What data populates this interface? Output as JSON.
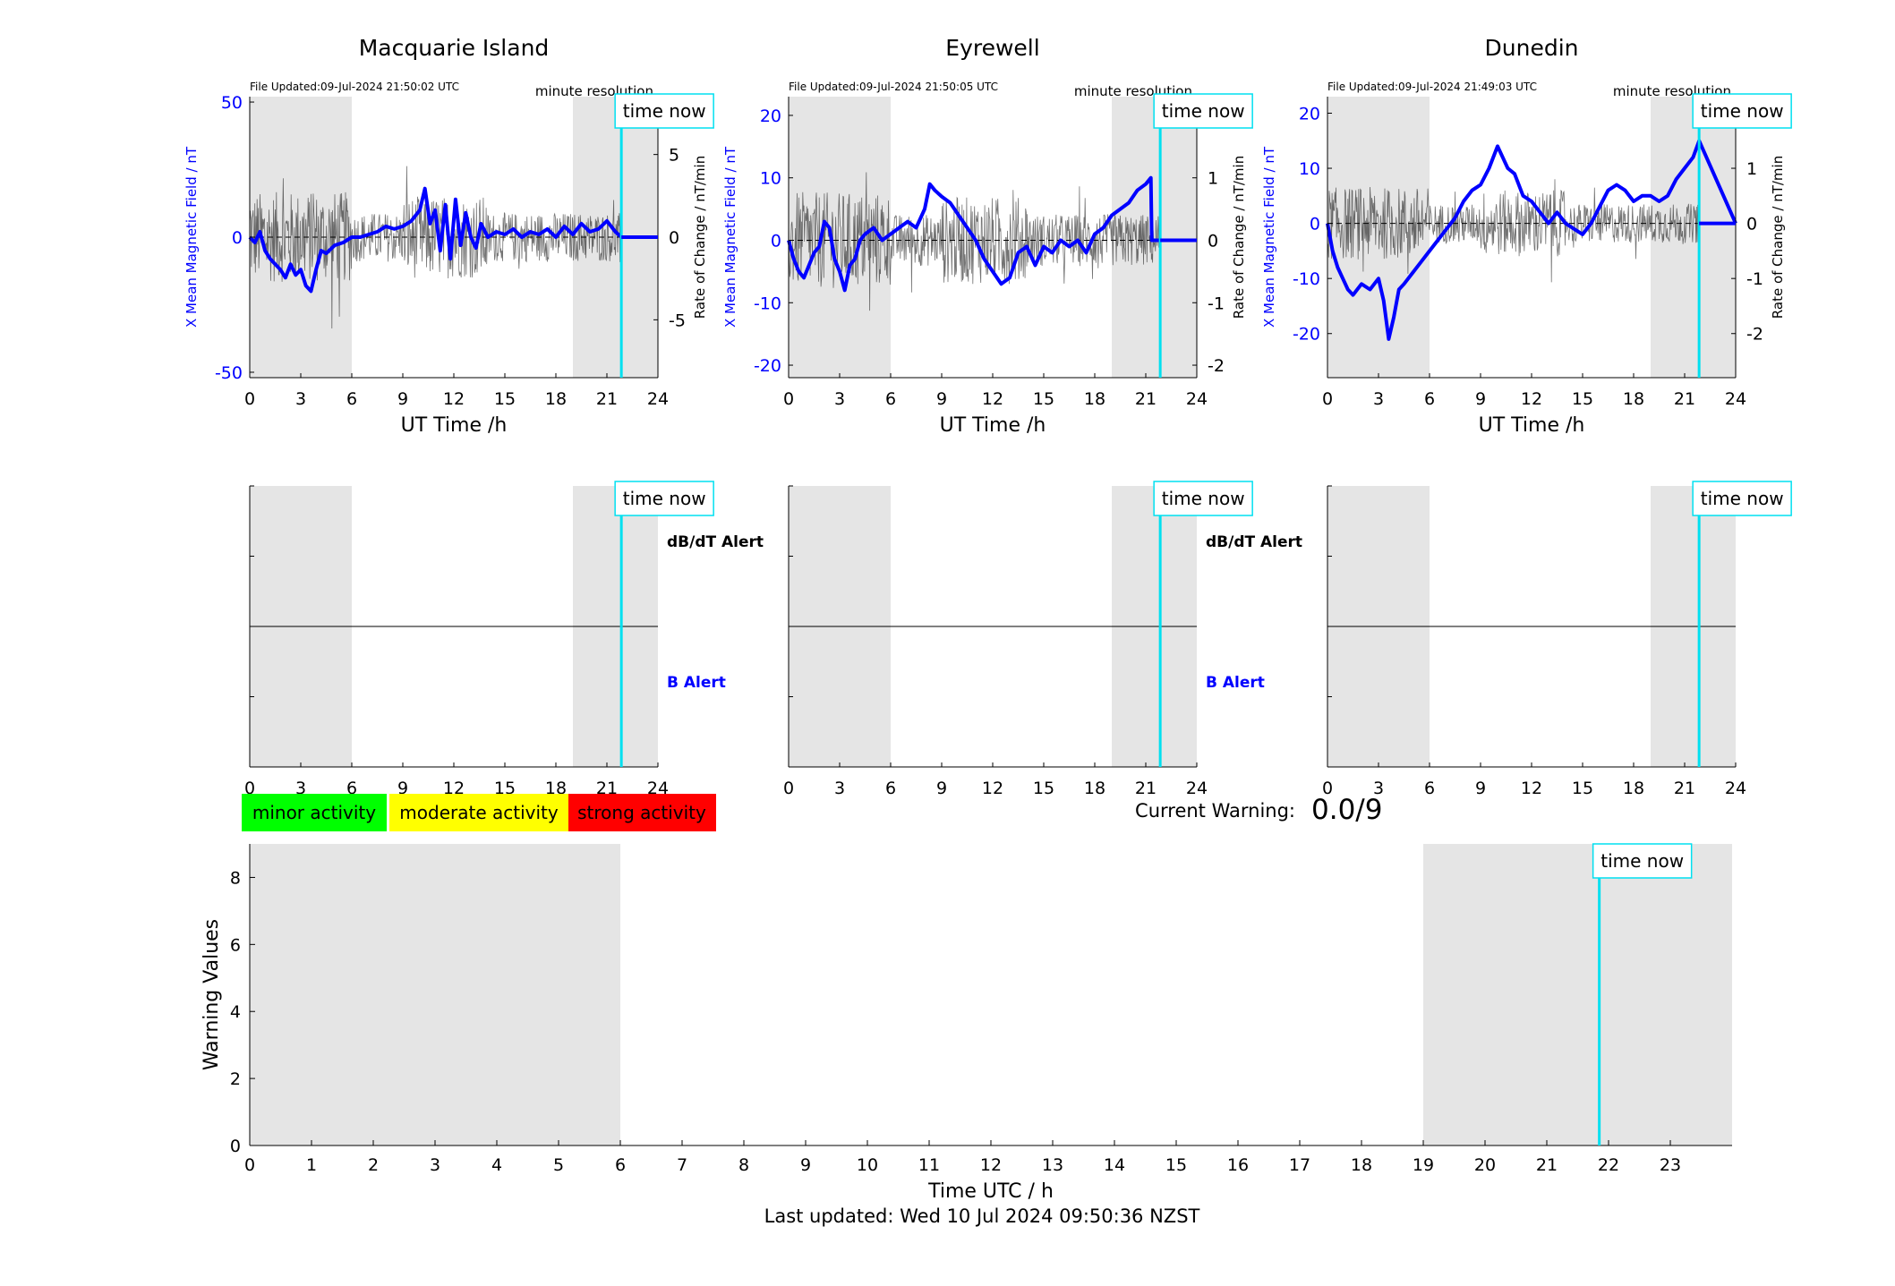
{
  "magnetometer_panels": [
    {
      "station": "Macquarie Island",
      "file_updated": "File Updated:09-Jul-2024 21:50:02 UTC",
      "resolution": "minute resolution",
      "ylabel_left": "X Mean Magnetic Field / nT",
      "ylabel_right": "Rate of Change / nT/min",
      "xlabel": "UT Time /h",
      "left_ticks": [
        "-50",
        "0",
        "50"
      ],
      "right_ticks": [
        "-5",
        "0",
        "5"
      ],
      "x_ticks": [
        "0",
        "3",
        "6",
        "9",
        "12",
        "15",
        "18",
        "21",
        "24"
      ],
      "time_now_label": "time now",
      "alert_labels": [
        "dB/dT Alert",
        "B Alert"
      ]
    },
    {
      "station": "Eyrewell",
      "file_updated": "File Updated:09-Jul-2024 21:50:05 UTC",
      "resolution": "minute resolution",
      "ylabel_left": "X Mean Magnetic Field / nT",
      "ylabel_right": "Rate of Change / nT/min",
      "xlabel": "UT Time /h",
      "left_ticks": [
        "-20",
        "-10",
        "0",
        "10",
        "20"
      ],
      "right_ticks": [
        "-2",
        "-1",
        "0",
        "1",
        "2"
      ],
      "x_ticks": [
        "0",
        "3",
        "6",
        "9",
        "12",
        "15",
        "18",
        "21",
        "24"
      ],
      "time_now_label": "time now",
      "alert_labels": [
        "dB/dT Alert",
        "B Alert"
      ]
    },
    {
      "station": "Dunedin",
      "file_updated": "File Updated:09-Jul-2024 21:49:03 UTC",
      "resolution": "minute resolution",
      "ylabel_left": "X Mean Magnetic Field / nT",
      "ylabel_right": "Rate of Change / nT/min",
      "xlabel": "UT Time /h",
      "left_ticks": [
        "-20",
        "-10",
        "0",
        "10",
        "20"
      ],
      "right_ticks": [
        "-2",
        "-1",
        "0",
        "1",
        "2"
      ],
      "x_ticks": [
        "0",
        "3",
        "6",
        "9",
        "12",
        "15",
        "18",
        "21",
        "24"
      ],
      "time_now_label": "time now",
      "alert_labels": []
    }
  ],
  "legend": {
    "minor": "minor activity",
    "moderate": "moderate activity",
    "strong": "strong activity"
  },
  "current_warning": {
    "label": "Current Warning:",
    "value": "0.0/9"
  },
  "warning_chart": {
    "ylabel": "Warning Values",
    "xlabel": "Time UTC / h",
    "time_now_label": "time now",
    "y_ticks": [
      "0",
      "2",
      "4",
      "6",
      "8"
    ],
    "x_ticks": [
      "0",
      "1",
      "2",
      "3",
      "4",
      "5",
      "6",
      "7",
      "8",
      "9",
      "10",
      "11",
      "12",
      "13",
      "14",
      "15",
      "16",
      "17",
      "18",
      "19",
      "20",
      "21",
      "22",
      "23"
    ]
  },
  "last_updated": "Last updated: Wed 10 Jul 2024 09:50:36 NZST",
  "colors": {
    "field_line": "#0000ff",
    "rate_line": "#000000",
    "time_now": "#00e0f0",
    "night_shade": "#e5e5e5",
    "minor": "#00ff00",
    "moderate": "#ffff00",
    "strong": "#ff0000"
  },
  "chart_data": [
    {
      "type": "line",
      "station": "Macquarie Island",
      "x_unit": "UT hours",
      "xlim": [
        0,
        24
      ],
      "ylim_left": [
        -52,
        52
      ],
      "ylim_right": [
        -8.5,
        8.5
      ],
      "night_shading_hours": [
        [
          0,
          6
        ],
        [
          19,
          24
        ]
      ],
      "time_now_hour": 21.85,
      "field_series": {
        "name": "X Mean Magnetic Field / nT",
        "x": [
          0,
          0.3,
          0.6,
          0.9,
          1.2,
          1.5,
          1.8,
          2.1,
          2.4,
          2.7,
          3.0,
          3.3,
          3.6,
          3.9,
          4.2,
          4.5,
          5.0,
          5.5,
          6.0,
          6.5,
          7.0,
          7.5,
          8.0,
          8.5,
          9.0,
          9.5,
          10.0,
          10.3,
          10.6,
          10.9,
          11.2,
          11.5,
          11.8,
          12.1,
          12.4,
          12.7,
          13.0,
          13.3,
          13.6,
          14.0,
          14.5,
          15.0,
          15.5,
          16.0,
          16.5,
          17.0,
          17.5,
          18.0,
          18.5,
          19.0,
          19.5,
          20.0,
          20.5,
          21.0,
          21.5,
          21.85,
          24
        ],
        "values": [
          0,
          -2,
          2,
          -5,
          -8,
          -10,
          -12,
          -15,
          -10,
          -14,
          -12,
          -18,
          -20,
          -12,
          -5,
          -6,
          -3,
          -2,
          0,
          0,
          1,
          2,
          4,
          3,
          4,
          6,
          10,
          18,
          5,
          10,
          -5,
          12,
          -8,
          14,
          -3,
          9,
          0,
          -4,
          5,
          0,
          2,
          1,
          3,
          0,
          2,
          1,
          3,
          0,
          4,
          1,
          5,
          2,
          3,
          6,
          2,
          0,
          0
        ]
      },
      "rate_series": {
        "name": "Rate of Change / nT/min",
        "description": "noisy minute-resolution rate of change, roughly ±3 nT/min, spiking to about ±5",
        "amplitude": 2.5
      }
    },
    {
      "type": "line",
      "station": "Eyrewell",
      "x_unit": "UT hours",
      "xlim": [
        0,
        24
      ],
      "ylim_left": [
        -22,
        23
      ],
      "ylim_right": [
        -2.2,
        2.3
      ],
      "night_shading_hours": [
        [
          0,
          6
        ],
        [
          19,
          24
        ]
      ],
      "time_now_hour": 21.85,
      "field_series": {
        "name": "X Mean Magnetic Field / nT",
        "x": [
          0,
          0.3,
          0.6,
          0.9,
          1.2,
          1.5,
          1.8,
          2.1,
          2.4,
          2.7,
          3.0,
          3.3,
          3.6,
          3.9,
          4.2,
          4.5,
          5.0,
          5.5,
          6.0,
          6.5,
          7.0,
          7.5,
          8.0,
          8.3,
          8.6,
          9.0,
          9.5,
          10.0,
          10.5,
          11.0,
          11.5,
          12.0,
          12.5,
          13.0,
          13.5,
          14.0,
          14.5,
          15.0,
          15.5,
          16.0,
          16.5,
          17.0,
          17.5,
          18.0,
          18.5,
          19.0,
          19.5,
          20.0,
          20.5,
          21.0,
          21.3,
          21.35,
          24
        ],
        "values": [
          0,
          -3,
          -5,
          -6,
          -4,
          -2,
          -1,
          3,
          2,
          -3,
          -5,
          -8,
          -4,
          -3,
          0,
          1,
          2,
          0,
          1,
          2,
          3,
          2,
          5,
          9,
          8,
          7,
          6,
          4,
          2,
          0,
          -3,
          -5,
          -7,
          -6,
          -2,
          -1,
          -4,
          -1,
          -2,
          0,
          -1,
          0,
          -2,
          1,
          2,
          4,
          5,
          6,
          8,
          9,
          10,
          0,
          0
        ]
      },
      "rate_series": {
        "name": "Rate of Change / nT/min",
        "description": "noisy minute-resolution rate of change, roughly ±0.8 nT/min, larger before 6 h",
        "amplitude": 0.7
      }
    },
    {
      "type": "line",
      "station": "Dunedin",
      "x_unit": "UT hours",
      "xlim": [
        0,
        24
      ],
      "ylim_left": [
        -28,
        23
      ],
      "ylim_right": [
        -2.8,
        2.3
      ],
      "night_shading_hours": [
        [
          0,
          6
        ],
        [
          19,
          24
        ]
      ],
      "time_now_hour": 21.85,
      "field_series": {
        "name": "X Mean Magnetic Field / nT",
        "x": [
          0,
          0.3,
          0.6,
          0.9,
          1.2,
          1.5,
          2.0,
          2.5,
          3.0,
          3.3,
          3.6,
          3.9,
          4.2,
          4.5,
          5.0,
          5.5,
          6.0,
          6.5,
          7.0,
          7.5,
          8.0,
          8.5,
          9.0,
          9.5,
          10.0,
          10.3,
          10.6,
          11.0,
          11.5,
          12.0,
          12.5,
          13.0,
          13.5,
          14.0,
          14.5,
          15.0,
          15.5,
          16.0,
          16.5,
          17.0,
          17.5,
          18.0,
          18.5,
          19.0,
          19.5,
          20.0,
          20.5,
          21.0,
          21.5,
          21.85,
          24
        ],
        "values": [
          0,
          -5,
          -8,
          -10,
          -12,
          -13,
          -11,
          -12,
          -10,
          -14,
          -21,
          -17,
          -12,
          -11,
          -9,
          -7,
          -5,
          -3,
          -1,
          1,
          4,
          6,
          7,
          10,
          14,
          12,
          10,
          9,
          5,
          4,
          2,
          0,
          2,
          0,
          -1,
          -2,
          0,
          3,
          6,
          7,
          6,
          4,
          5,
          5,
          4,
          5,
          8,
          10,
          12,
          15,
          0
        ]
      },
      "rate_series": {
        "name": "Rate of Change / nT/min",
        "description": "noisy minute-resolution rate of change, roughly ±0.8 nT/min",
        "amplitude": 0.6
      }
    },
    {
      "type": "line",
      "title": "",
      "xlabel": "Time UTC / h",
      "ylabel": "Warning Values",
      "xlim": [
        0,
        24
      ],
      "ylim": [
        0,
        9
      ],
      "night_shading_hours": [
        [
          0,
          6
        ],
        [
          19,
          24
        ]
      ],
      "time_now_hour": 21.85,
      "series": []
    }
  ]
}
